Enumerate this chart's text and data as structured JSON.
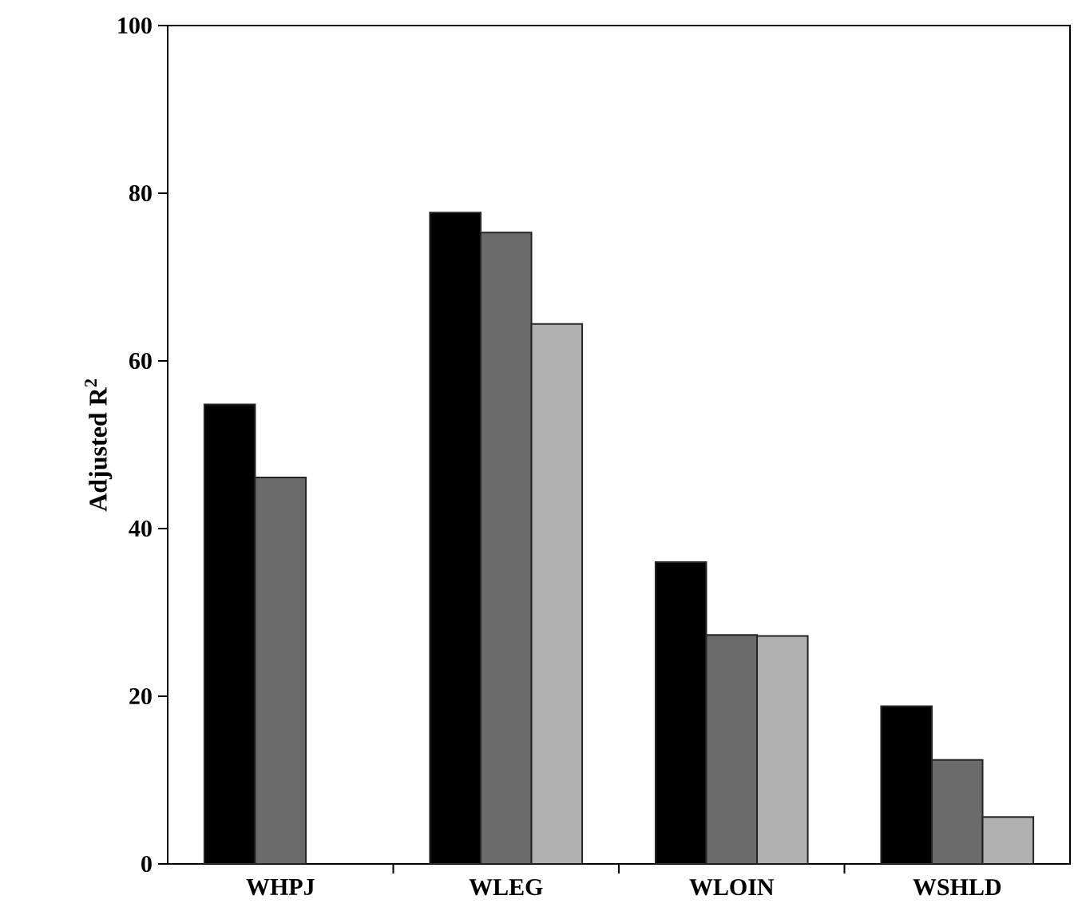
{
  "chart_data": {
    "type": "bar",
    "ylabel": "Adjusted R$^{2}$",
    "categories": [
      "WHPJ",
      "WLEG",
      "WLOIN",
      "WSHLD"
    ],
    "series": [
      {
        "color": "#000000",
        "values": [
          54.8,
          77.7,
          36.0,
          18.8
        ]
      },
      {
        "color": "#6b6b6b",
        "values": [
          46.1,
          75.3,
          27.3,
          12.4
        ]
      },
      {
        "color": "#b0b0b0",
        "values": [
          null,
          64.4,
          27.2,
          5.6
        ]
      }
    ],
    "ylim": [
      0,
      100
    ],
    "yticks": [
      0,
      20,
      40,
      60,
      80,
      100
    ],
    "grid": false
  }
}
